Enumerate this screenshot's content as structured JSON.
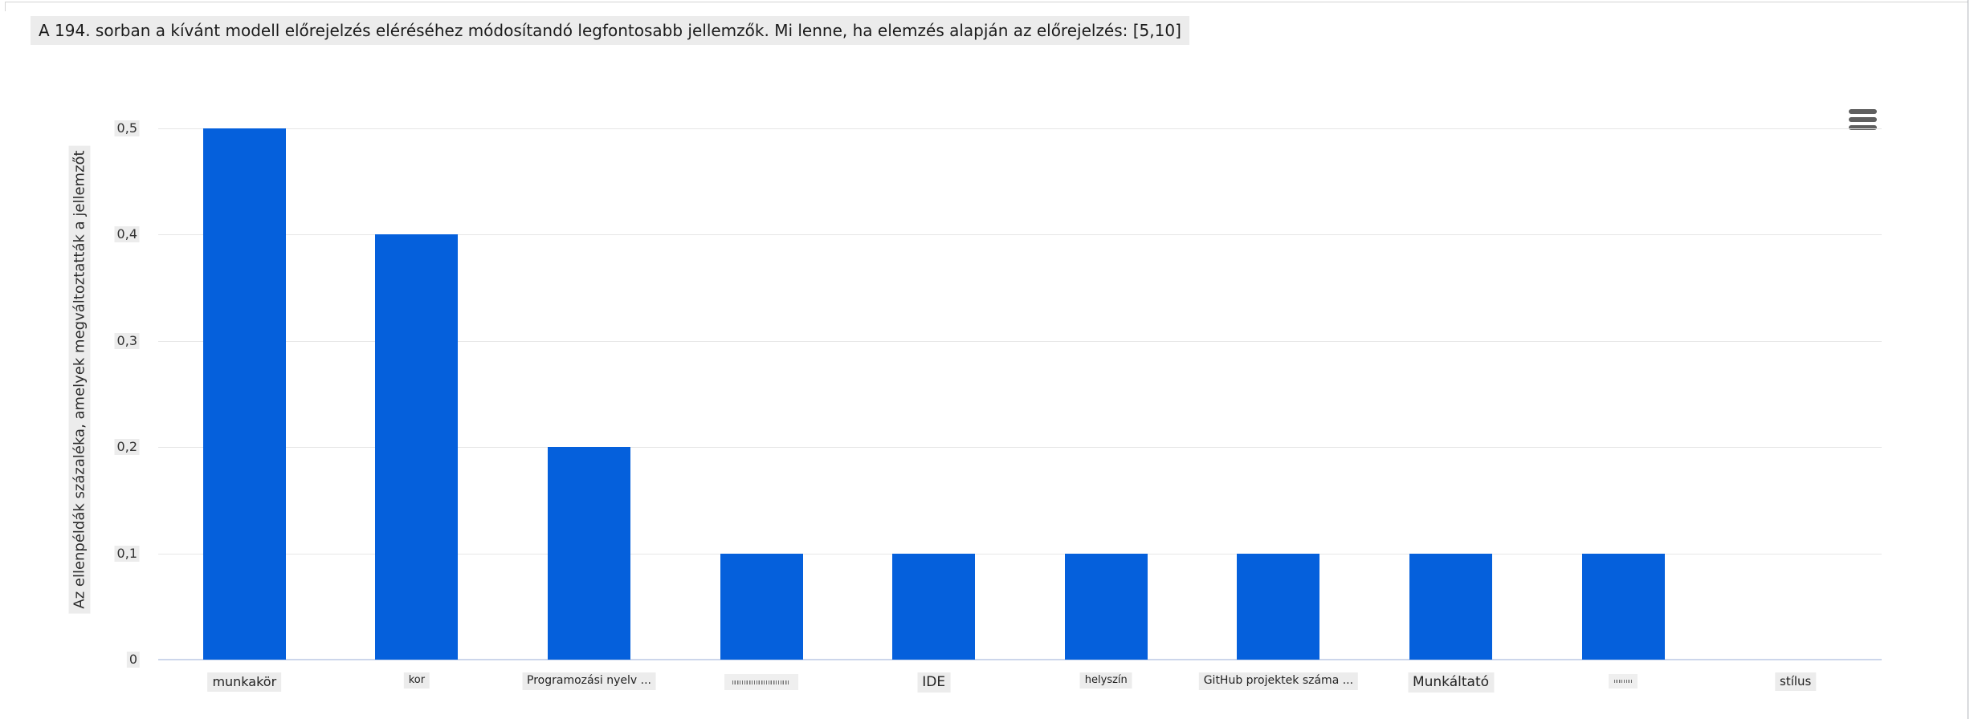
{
  "chart_data": {
    "type": "bar",
    "title": "A 194. sorban a kívánt modell előrejelzés eléréséhez módosítandó legfontosabb jellemzők. Mi lenne, ha elemzés alapján az előrejelzés: [5,10]",
    "ylabel": "Az ellenpéldák százaléka, amelyek megváltoztatták a jellemzőt",
    "xlabel": "",
    "ylim": [
      0,
      0.5
    ],
    "yticks": [
      0,
      0.1,
      0.2,
      0.3,
      0.4,
      0.5
    ],
    "ytick_labels": [
      "0",
      "0,1",
      "0,2",
      "0,3",
      "0,4",
      "0,5"
    ],
    "grid": true,
    "legend": false,
    "bar_color": "#0560dc",
    "grid_color": "#e6e6e6",
    "axis_line_color": "#ccd6eb",
    "categories": [
      "munkakör",
      "kor",
      "Programozási nyelv ...",
      "",
      "IDE",
      "helyszín",
      "GitHub projektek száma ...",
      "Munkáltató",
      "",
      "stílus"
    ],
    "values": [
      0.5,
      0.4,
      0.2,
      0.1,
      0.1,
      0.1,
      0.1,
      0.1,
      0.1,
      0
    ],
    "illegible_category_indices": [
      3,
      8
    ],
    "series": [
      {
        "name": "",
        "values": [
          0.5,
          0.4,
          0.2,
          0.1,
          0.1,
          0.1,
          0.1,
          0.1,
          0.1,
          0
        ]
      }
    ]
  },
  "controls": {
    "menu_icon": "hamburger-icon"
  }
}
